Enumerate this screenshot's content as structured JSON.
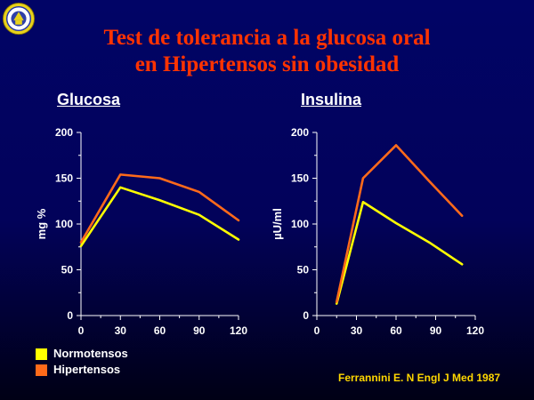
{
  "header": {
    "title_line1": "Test de tolerancia a la glucosa oral",
    "title_line2": "en Hipertensos sin obesidad"
  },
  "colors": {
    "background": "#010466",
    "title": "#ff3300",
    "normotensos": "#ffff00",
    "hipertensos": "#ff6a1a",
    "source": "#ffd700",
    "axis": "#ffffff"
  },
  "legend": {
    "items": [
      {
        "label": "Normotensos",
        "color": "#ffff00"
      },
      {
        "label": "Hipertensos",
        "color": "#ff6a1a"
      }
    ]
  },
  "source": "Ferrannini E. N Engl J Med 1987",
  "logo": {
    "icon": "university-seal-icon"
  },
  "chart_data": [
    {
      "type": "line",
      "title": "Glucosa",
      "xlabel": "",
      "ylabel": "mg %",
      "xlim": [
        0,
        120
      ],
      "ylim": [
        0,
        200
      ],
      "xticks": [
        0,
        30,
        60,
        90,
        120
      ],
      "yticks": [
        0,
        50,
        100,
        150,
        200
      ],
      "grid": false,
      "series": [
        {
          "name": "Normotensos",
          "color": "#ffff00",
          "x": [
            0,
            30,
            60,
            90,
            120
          ],
          "y": [
            76,
            140,
            126,
            110,
            83
          ]
        },
        {
          "name": "Hipertensos",
          "color": "#ff6a1a",
          "x": [
            0,
            30,
            60,
            90,
            120
          ],
          "y": [
            80,
            154,
            150,
            135,
            104
          ]
        }
      ]
    },
    {
      "type": "line",
      "title": "Insulina",
      "xlabel": "",
      "ylabel": "µU/ml",
      "xlim": [
        0,
        120
      ],
      "ylim": [
        0,
        200
      ],
      "xticks": [
        0,
        30,
        60,
        90,
        120
      ],
      "yticks": [
        0,
        50,
        100,
        150,
        200
      ],
      "grid": false,
      "series": [
        {
          "name": "Normotensos",
          "color": "#ffff00",
          "x": [
            15,
            35,
            60,
            85,
            110
          ],
          "y": [
            13,
            124,
            101,
            80,
            56
          ]
        },
        {
          "name": "Hipertensos",
          "color": "#ff6a1a",
          "x": [
            15,
            35,
            60,
            85,
            110
          ],
          "y": [
            15,
            150,
            186,
            147,
            109
          ]
        }
      ]
    }
  ]
}
